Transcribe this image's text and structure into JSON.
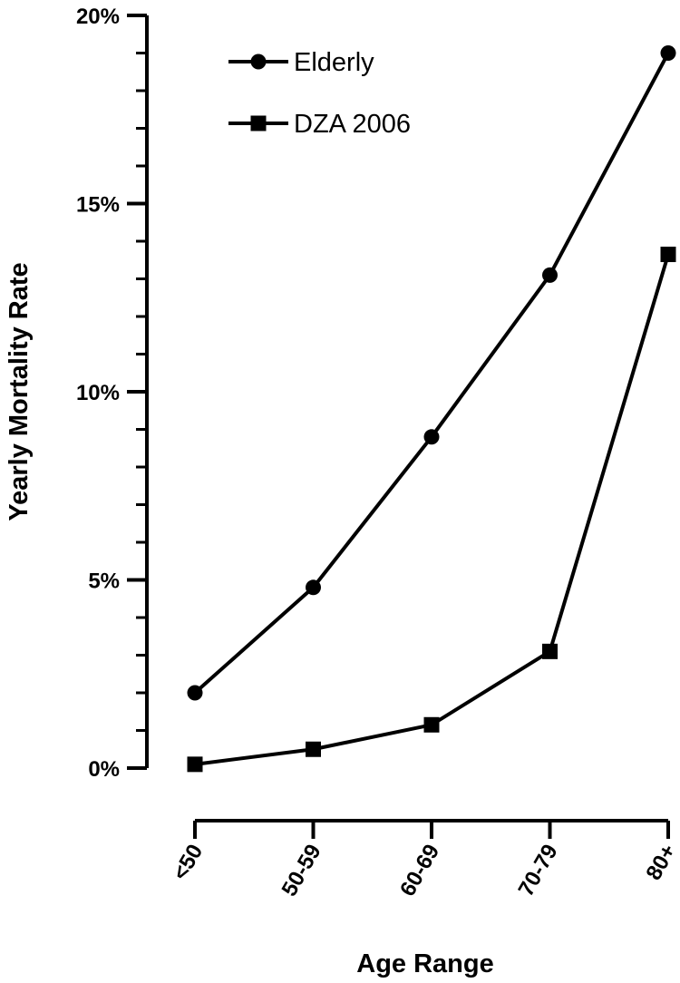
{
  "chart_data": {
    "type": "line",
    "title": "",
    "xlabel": "Age Range",
    "ylabel": "Yearly Mortality Rate",
    "categories": [
      "<50",
      "50-59",
      "60-69",
      "70-79",
      "80+"
    ],
    "ylim": [
      0,
      20
    ],
    "yticks": [
      0,
      5,
      10,
      15,
      20
    ],
    "ytick_labels": [
      "0%",
      "5%",
      "10%",
      "15%",
      "20%"
    ],
    "yminor_step": 1,
    "grid": false,
    "legend_position": "top-left",
    "series": [
      {
        "name": "Elderly",
        "marker": "circle",
        "color": "#000000",
        "values": [
          2.0,
          4.8,
          8.8,
          13.1,
          19.0
        ]
      },
      {
        "name": "DZA 2006",
        "marker": "square",
        "color": "#000000",
        "values": [
          0.1,
          0.5,
          1.15,
          3.1,
          13.65
        ]
      }
    ]
  }
}
